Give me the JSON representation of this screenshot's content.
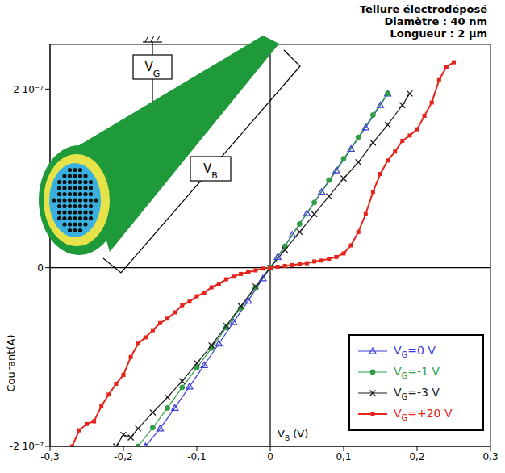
{
  "chart_data": {
    "type": "line",
    "title": "Tellure électrodéposé",
    "subtitle": [
      "Diamètre : 40 nm",
      "Longueur : 2 µm"
    ],
    "x_label": "VB (V)",
    "y_label": "Courant(A)",
    "annotations": [
      "VG",
      "VB"
    ],
    "xlim": [
      -0.3,
      0.3
    ],
    "ylim": [
      -2e-07,
      2.5e-07
    ],
    "xticks": [
      {
        "value": -0.3,
        "label": "-0,3"
      },
      {
        "value": -0.2,
        "label": "-0,2"
      },
      {
        "value": -0.1,
        "label": "-0,1"
      },
      0,
      {
        "value": 0.1,
        "label": "0,1"
      },
      {
        "value": 0.2,
        "label": "0,2"
      },
      {
        "value": 0.3,
        "label": "0,3"
      }
    ],
    "yticks": [
      {
        "value": -2e-07,
        "label": "-2 10⁻⁷"
      },
      0,
      {
        "value": 2e-07,
        "label": "2 10⁻⁷"
      }
    ],
    "grid": false,
    "legend": "bottom right",
    "series": [
      {
        "name": "VG=0 V",
        "color": "#3b3bd6",
        "marker": "triangle",
        "x": [
          -0.17,
          -0.15,
          -0.13,
          -0.11,
          -0.09,
          -0.07,
          -0.05,
          -0.03,
          -0.01,
          0.01,
          0.03,
          0.05,
          0.07,
          0.09,
          0.11,
          0.13,
          0.15,
          0.16
        ],
        "values": [
          -2e-07,
          -1.8e-07,
          -1.57e-07,
          -1.33e-07,
          -1.09e-07,
          -8.5e-08,
          -6.1e-08,
          -3.7e-08,
          -1.2e-08,
          1.2e-08,
          3.7e-08,
          6.1e-08,
          8.5e-08,
          1.09e-07,
          1.33e-07,
          1.57e-07,
          1.82e-07,
          1.95e-07
        ]
      },
      {
        "name": "VG=-1 V",
        "color": "#2f9e44",
        "marker": "circle",
        "x": [
          -0.18,
          -0.16,
          -0.14,
          -0.12,
          -0.1,
          -0.08,
          -0.06,
          -0.04,
          -0.02,
          0,
          0.02,
          0.04,
          0.06,
          0.08,
          0.1,
          0.12,
          0.14,
          0.16
        ],
        "values": [
          -2e-07,
          -1.79e-07,
          -1.57e-07,
          -1.34e-07,
          -1.12e-07,
          -9e-08,
          -6.7e-08,
          -4.5e-08,
          -2.2e-08,
          0,
          2.4e-08,
          4.9e-08,
          7.3e-08,
          9.8e-08,
          1.22e-07,
          1.46e-07,
          1.71e-07,
          1.95e-07
        ]
      },
      {
        "name": "VG=-3 V",
        "color": "#1a1a1a",
        "marker": "x",
        "x": [
          -0.21,
          -0.2,
          -0.19,
          -0.18,
          -0.16,
          -0.14,
          -0.12,
          -0.1,
          -0.08,
          -0.06,
          -0.04,
          -0.02,
          0,
          0.02,
          0.04,
          0.06,
          0.08,
          0.1,
          0.12,
          0.14,
          0.16,
          0.18,
          0.19
        ],
        "values": [
          -2e-07,
          -1.87e-07,
          -1.9e-07,
          -1.8e-07,
          -1.62e-07,
          -1.45e-07,
          -1.27e-07,
          -1.07e-07,
          -8.7e-08,
          -6.5e-08,
          -4.3e-08,
          -2.1e-08,
          0,
          2e-08,
          4e-08,
          6e-08,
          8e-08,
          1e-07,
          1.18e-07,
          1.4e-07,
          1.6e-07,
          1.82e-07,
          1.95e-07
        ]
      },
      {
        "name": "VG=+20 V",
        "color": "#e4231b",
        "marker": "square",
        "x": [
          -0.27,
          -0.26,
          -0.25,
          -0.24,
          -0.23,
          -0.22,
          -0.21,
          -0.2,
          -0.19,
          -0.18,
          -0.17,
          -0.16,
          -0.15,
          -0.14,
          -0.13,
          -0.12,
          -0.11,
          -0.1,
          -0.09,
          -0.08,
          -0.07,
          -0.06,
          -0.05,
          -0.04,
          -0.03,
          -0.02,
          -0.01,
          0,
          0.01,
          0.02,
          0.03,
          0.04,
          0.05,
          0.06,
          0.07,
          0.08,
          0.09,
          0.1,
          0.11,
          0.12,
          0.13,
          0.14,
          0.15,
          0.16,
          0.17,
          0.18,
          0.19,
          0.2,
          0.21,
          0.22,
          0.23,
          0.24,
          0.25
        ],
        "values": [
          -2e-07,
          -1.82e-07,
          -1.75e-07,
          -1.72e-07,
          -1.55e-07,
          -1.42e-07,
          -1.3e-07,
          -1.2e-07,
          -1e-07,
          -8.5e-08,
          -7.8e-08,
          -7e-08,
          -6.2e-08,
          -5.7e-08,
          -5e-08,
          -4.2e-08,
          -3.8e-08,
          -3.2e-08,
          -2.8e-08,
          -2.2e-08,
          -1.8e-08,
          -1.3e-08,
          -1e-08,
          -7e-09,
          -5e-09,
          -3e-09,
          -1e-09,
          0,
          1e-09,
          2e-09,
          3e-09,
          4e-09,
          5e-09,
          7e-09,
          8e-09,
          1e-08,
          1.2e-08,
          1.6e-08,
          2.5e-08,
          4e-08,
          6e-08,
          8.5e-08,
          1.05e-07,
          1.2e-07,
          1.3e-07,
          1.42e-07,
          1.48e-07,
          1.55e-07,
          1.7e-07,
          1.85e-07,
          2.1e-07,
          2.25e-07,
          2.3e-07
        ]
      }
    ]
  }
}
